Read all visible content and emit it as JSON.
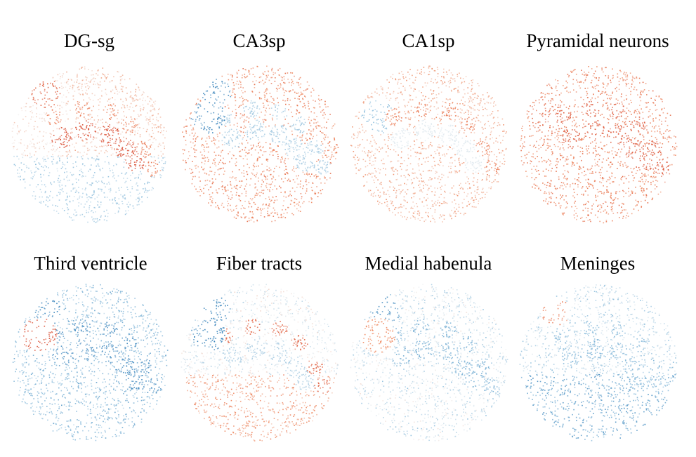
{
  "panels": [
    {
      "title": "DG-sg"
    },
    {
      "title": "CA3sp"
    },
    {
      "title": "CA1sp"
    },
    {
      "title": "Pyramidal neurons"
    },
    {
      "title": "Third ventricle"
    },
    {
      "title": "Fiber tracts"
    },
    {
      "title": "Medial habenula"
    },
    {
      "title": "Meninges"
    }
  ],
  "colors": {
    "high": "#d6452b",
    "mid_high": "#ef8a62",
    "neutral": "#f2f2f2",
    "mid_low": "#8fbfdd",
    "low": "#2c7bb6"
  }
}
